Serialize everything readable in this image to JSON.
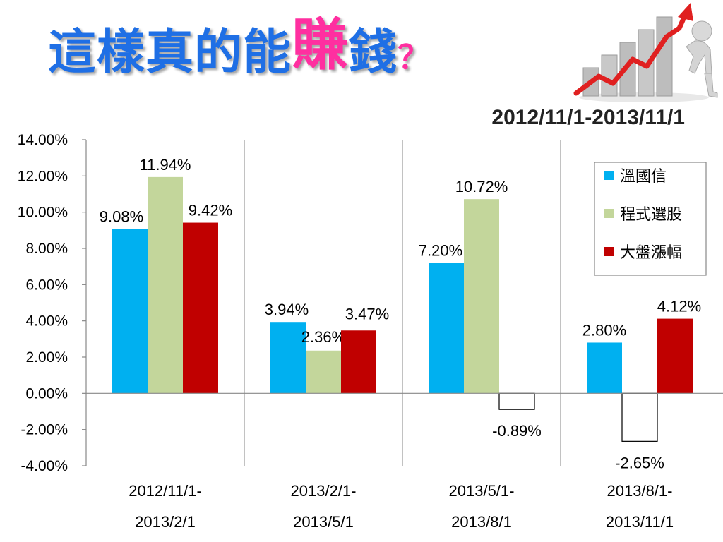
{
  "header": {
    "title_part1": "這樣真的能",
    "title_highlight": "賺",
    "title_part2": "錢",
    "title_mark": "？",
    "subtitle": "2012/11/1-2013/11/1"
  },
  "colors": {
    "title": "#1f6fe5",
    "highlight": "#ff2fa0",
    "series_1": "#00b0f0",
    "series_2": "#c3d69b",
    "series_3": "#c00000",
    "negative_fill": "#ffffff",
    "decoration_arrow": "#e02020"
  },
  "decoration": {
    "icon": "growth-chart-arrow-figure-icon"
  },
  "chart_data": {
    "type": "bar",
    "categories": [
      [
        "2012/11/1-",
        "2013/2/1"
      ],
      [
        "2013/2/1-",
        "2013/5/1"
      ],
      [
        "2013/5/1-",
        "2013/8/1"
      ],
      [
        "2013/8/1-",
        "2013/11/1"
      ]
    ],
    "series": [
      {
        "name": "溫國信",
        "values": [
          9.08,
          3.94,
          7.2,
          2.8
        ],
        "labels": [
          "9.08%",
          "3.94%",
          "7.20%",
          "2.80%"
        ]
      },
      {
        "name": "程式選股",
        "values": [
          11.94,
          2.36,
          10.72,
          -2.65
        ],
        "labels": [
          "11.94%",
          "2.36%",
          "10.72%",
          "-2.65%"
        ]
      },
      {
        "name": "大盤漲幅",
        "values": [
          9.42,
          3.47,
          -0.89,
          4.12
        ],
        "labels": [
          "9.42%",
          "3.47%",
          "-0.89%",
          "4.12%"
        ]
      }
    ],
    "ylim": [
      -4,
      14
    ],
    "yticks": [
      "14.00%",
      "12.00%",
      "10.00%",
      "8.00%",
      "6.00%",
      "4.00%",
      "2.00%",
      "0.00%",
      "-2.00%",
      "-4.00%"
    ],
    "ytick_values": [
      14,
      12,
      10,
      8,
      6,
      4,
      2,
      0,
      -2,
      -4
    ],
    "grid": "vertical separators between categories",
    "legend": "right, inside plot",
    "negative_style": "white fill with black outline",
    "title": "",
    "xlabel": "",
    "ylabel": ""
  }
}
